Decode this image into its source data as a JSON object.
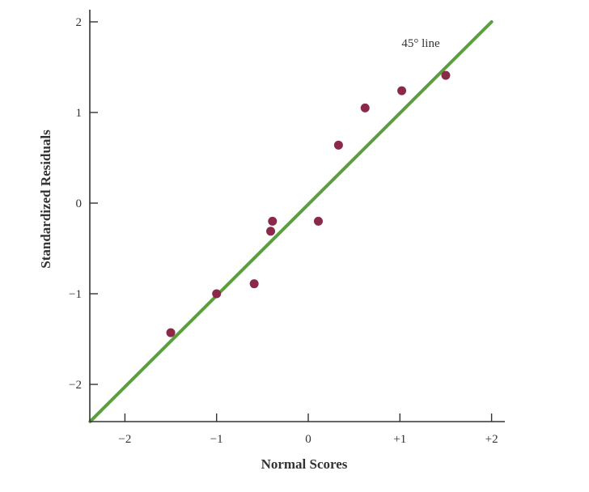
{
  "chart_data": {
    "type": "scatter",
    "title": "",
    "xlabel": "Normal Scores",
    "ylabel": "Standardized Residuals",
    "xlim": [
      -2.4,
      2.15
    ],
    "ylim": [
      -2.4,
      2.1
    ],
    "grid": false,
    "legend": "none",
    "x_ticks": [
      -2,
      -1,
      0,
      1,
      2
    ],
    "x_tick_labels": [
      "−2",
      "−1",
      "0",
      "+1",
      "+2"
    ],
    "y_ticks": [
      -2,
      -1,
      0,
      1,
      2
    ],
    "y_tick_labels": [
      "−2",
      "−1",
      "0",
      "1",
      "2"
    ],
    "series": [
      {
        "name": "Residuals",
        "type": "scatter",
        "color": "#8b2a48",
        "x": [
          -1.5,
          -1.0,
          -0.59,
          -0.41,
          -0.39,
          0.11,
          0.33,
          0.62,
          1.02,
          1.5
        ],
        "y": [
          -1.43,
          -1.0,
          -0.89,
          -0.31,
          -0.2,
          -0.2,
          0.64,
          1.05,
          1.24,
          1.41
        ]
      },
      {
        "name": "45° line",
        "type": "line",
        "color": "#5a9e3e",
        "x": [
          -2.38,
          2.0
        ],
        "y": [
          -2.41,
          2.0
        ]
      }
    ],
    "annotations": [
      {
        "text": "45° line",
        "x": 1.22,
        "y": 1.75
      }
    ]
  }
}
